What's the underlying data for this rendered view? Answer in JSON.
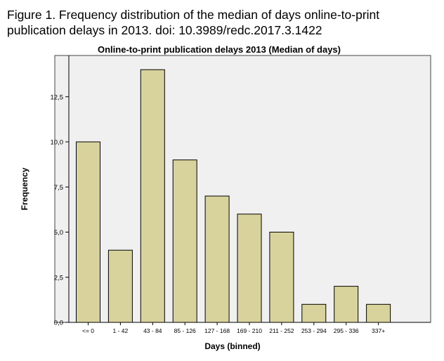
{
  "figure": {
    "caption_lines": [
      "Figure 1. Frequency distribution of the median of days online-to-print",
      "publication delays in 2013. doi: 10.3989/redc.2017.3.1422"
    ]
  },
  "chart_data": {
    "type": "bar",
    "title": "Online-to-print publication delays 2013 (Median of days)",
    "xlabel": "Days (binned)",
    "ylabel": "Frequency",
    "categories": [
      "<= 0",
      "1 - 42",
      "43 - 84",
      "85 - 126",
      "127 - 168",
      "169 - 210",
      "211 - 252",
      "253 - 294",
      "295 - 336",
      "337+"
    ],
    "values": [
      10,
      4,
      14,
      9,
      7,
      6,
      5,
      1,
      2,
      1
    ],
    "ylim": [
      0,
      15
    ],
    "yticks": [
      0,
      2.5,
      5,
      7.5,
      10,
      12.5
    ],
    "ytick_labels": [
      "0,0",
      "2,5",
      "5,0",
      "7,5",
      "10,0",
      "12,5"
    ],
    "grid": false,
    "colors": {
      "plot_background": "#f0f0f0",
      "bar_fill": "#d8d39c",
      "bar_stroke": "#000000"
    }
  }
}
